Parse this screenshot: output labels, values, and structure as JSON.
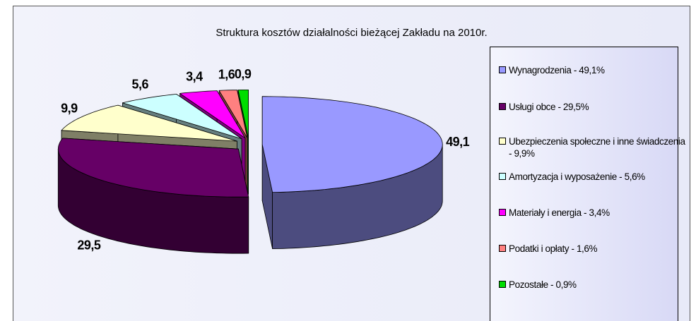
{
  "chart_data": {
    "type": "pie3d",
    "title": "Struktura kosztów działalności bieżącej Zakładu na 2010r.",
    "categories": [
      "Wynagrodzenia - 49,1%",
      "Usługi obce - 29,5%",
      "Ubezpieczenia społeczne i inne świadczenia - 9,9%",
      "Amortyzacja i wyposażenie - 5,6%",
      "Materiały i energia - 3,4%",
      "Podatki i opłaty - 1,6%",
      "Pozostałe - 0,9%"
    ],
    "values": [
      49.1,
      29.5,
      9.9,
      5.6,
      3.4,
      1.6,
      0.9
    ],
    "value_labels": [
      "49,1",
      "29,5",
      "9,9",
      "5,6",
      "3,4",
      "1,6",
      "0,9"
    ],
    "colors": [
      "#9999ff",
      "#660066",
      "#ffffcc",
      "#ccffff",
      "#ff00ff",
      "#ff8080",
      "#00dd00"
    ],
    "legend": "right"
  }
}
